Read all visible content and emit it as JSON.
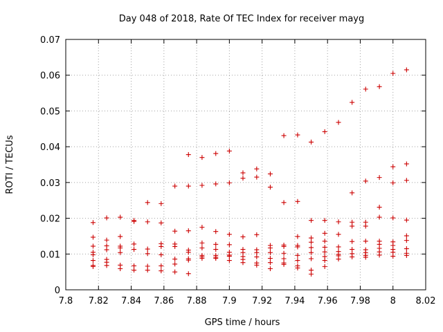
{
  "chart_data": {
    "type": "scatter",
    "title": "Day 048 of 2018, Rate Of TEC Index for receiver mayg",
    "xlabel": "GPS time / hours",
    "ylabel": "ROTI / TECUs",
    "xlim": [
      7.8,
      8.02
    ],
    "ylim": [
      0,
      0.07
    ],
    "xticks": [
      7.8,
      7.82,
      7.84,
      7.86,
      7.88,
      7.9,
      7.92,
      7.94,
      7.96,
      7.98,
      8,
      8.02
    ],
    "xtick_labels": [
      "7.8",
      "7.82",
      "7.84",
      "7.86",
      "7.88",
      "7.9",
      "7.92",
      "7.94",
      "7.96",
      "7.98",
      "8",
      "8.02"
    ],
    "yticks": [
      0,
      0.01,
      0.02,
      0.03,
      0.04,
      0.05,
      0.06,
      0.07
    ],
    "ytick_labels": [
      "0",
      "0.01",
      "0.02",
      "0.03",
      "0.04",
      "0.05",
      "0.06",
      "0.07"
    ],
    "grid": true,
    "marker": "+",
    "color": "#cc0000",
    "series": [
      {
        "name": "ROTI",
        "points": [
          [
            7.8167,
            0.0188
          ],
          [
            7.8167,
            0.0147
          ],
          [
            7.8167,
            0.0122
          ],
          [
            7.8167,
            0.0105
          ],
          [
            7.8167,
            0.0098
          ],
          [
            7.8167,
            0.0082
          ],
          [
            7.8167,
            0.0068
          ],
          [
            7.8167,
            0.0065
          ],
          [
            7.825,
            0.0201
          ],
          [
            7.825,
            0.0139
          ],
          [
            7.825,
            0.0123
          ],
          [
            7.825,
            0.0112
          ],
          [
            7.825,
            0.0085
          ],
          [
            7.825,
            0.0077
          ],
          [
            7.825,
            0.0068
          ],
          [
            7.8333,
            0.0203
          ],
          [
            7.8333,
            0.0149
          ],
          [
            7.8333,
            0.0122
          ],
          [
            7.8333,
            0.0117
          ],
          [
            7.8333,
            0.0104
          ],
          [
            7.8333,
            0.0069
          ],
          [
            7.8333,
            0.0059
          ],
          [
            7.8417,
            0.0194
          ],
          [
            7.8417,
            0.0191
          ],
          [
            7.8417,
            0.0128
          ],
          [
            7.8417,
            0.0113
          ],
          [
            7.8417,
            0.0067
          ],
          [
            7.8417,
            0.0055
          ],
          [
            7.85,
            0.0244
          ],
          [
            7.85,
            0.019
          ],
          [
            7.85,
            0.0114
          ],
          [
            7.85,
            0.0101
          ],
          [
            7.85,
            0.0066
          ],
          [
            7.85,
            0.0055
          ],
          [
            7.8583,
            0.0241
          ],
          [
            7.8583,
            0.0187
          ],
          [
            7.8583,
            0.0129
          ],
          [
            7.8583,
            0.0121
          ],
          [
            7.8583,
            0.0098
          ],
          [
            7.8583,
            0.0067
          ],
          [
            7.8583,
            0.0053
          ],
          [
            7.8667,
            0.029
          ],
          [
            7.8667,
            0.0164
          ],
          [
            7.8667,
            0.0128
          ],
          [
            7.8667,
            0.0121
          ],
          [
            7.8667,
            0.0086
          ],
          [
            7.8667,
            0.0072
          ],
          [
            7.8667,
            0.005
          ],
          [
            7.875,
            0.0378
          ],
          [
            7.875,
            0.029
          ],
          [
            7.875,
            0.0165
          ],
          [
            7.875,
            0.0111
          ],
          [
            7.875,
            0.0105
          ],
          [
            7.875,
            0.0087
          ],
          [
            7.875,
            0.0083
          ],
          [
            7.875,
            0.0045
          ],
          [
            7.8833,
            0.037
          ],
          [
            7.8833,
            0.0292
          ],
          [
            7.8833,
            0.0175
          ],
          [
            7.8833,
            0.0131
          ],
          [
            7.8833,
            0.0117
          ],
          [
            7.8833,
            0.0096
          ],
          [
            7.8833,
            0.0092
          ],
          [
            7.8833,
            0.0088
          ],
          [
            7.8917,
            0.0381
          ],
          [
            7.8917,
            0.0296
          ],
          [
            7.8917,
            0.0163
          ],
          [
            7.8917,
            0.0127
          ],
          [
            7.8917,
            0.0113
          ],
          [
            7.8917,
            0.0096
          ],
          [
            7.8917,
            0.0091
          ],
          [
            7.8917,
            0.0088
          ],
          [
            7.9,
            0.0388
          ],
          [
            7.9,
            0.0299
          ],
          [
            7.9,
            0.0155
          ],
          [
            7.9,
            0.0126
          ],
          [
            7.9,
            0.0105
          ],
          [
            7.9,
            0.0097
          ],
          [
            7.9,
            0.0094
          ],
          [
            7.9,
            0.0082
          ],
          [
            7.9083,
            0.0327
          ],
          [
            7.9083,
            0.0312
          ],
          [
            7.9083,
            0.0148
          ],
          [
            7.9083,
            0.0113
          ],
          [
            7.9083,
            0.0104
          ],
          [
            7.9083,
            0.0093
          ],
          [
            7.9083,
            0.0085
          ],
          [
            7.9083,
            0.0076
          ],
          [
            7.9167,
            0.0338
          ],
          [
            7.9167,
            0.0315
          ],
          [
            7.9167,
            0.0154
          ],
          [
            7.9167,
            0.0112
          ],
          [
            7.9167,
            0.0104
          ],
          [
            7.9167,
            0.0092
          ],
          [
            7.9167,
            0.0075
          ],
          [
            7.9167,
            0.0069
          ],
          [
            7.925,
            0.0324
          ],
          [
            7.925,
            0.0287
          ],
          [
            7.925,
            0.0124
          ],
          [
            7.925,
            0.0117
          ],
          [
            7.925,
            0.0104
          ],
          [
            7.925,
            0.0088
          ],
          [
            7.925,
            0.0076
          ],
          [
            7.925,
            0.0059
          ],
          [
            7.9333,
            0.0431
          ],
          [
            7.9333,
            0.0244
          ],
          [
            7.9333,
            0.0125
          ],
          [
            7.9333,
            0.0121
          ],
          [
            7.9333,
            0.0102
          ],
          [
            7.9333,
            0.0087
          ],
          [
            7.9333,
            0.0075
          ],
          [
            7.9333,
            0.0071
          ],
          [
            7.9417,
            0.0433
          ],
          [
            7.9417,
            0.0247
          ],
          [
            7.9417,
            0.0149
          ],
          [
            7.9417,
            0.0124
          ],
          [
            7.9417,
            0.012
          ],
          [
            7.9417,
            0.0096
          ],
          [
            7.9417,
            0.0082
          ],
          [
            7.9417,
            0.0067
          ],
          [
            7.9417,
            0.0061
          ],
          [
            7.95,
            0.0413
          ],
          [
            7.95,
            0.0194
          ],
          [
            7.95,
            0.0145
          ],
          [
            7.95,
            0.0133
          ],
          [
            7.95,
            0.0118
          ],
          [
            7.95,
            0.0104
          ],
          [
            7.95,
            0.0087
          ],
          [
            7.95,
            0.0055
          ],
          [
            7.95,
            0.0044
          ],
          [
            7.9583,
            0.0442
          ],
          [
            7.9583,
            0.0194
          ],
          [
            7.9583,
            0.0158
          ],
          [
            7.9583,
            0.0136
          ],
          [
            7.9583,
            0.0119
          ],
          [
            7.9583,
            0.0106
          ],
          [
            7.9583,
            0.0093
          ],
          [
            7.9583,
            0.0082
          ],
          [
            7.9583,
            0.0065
          ],
          [
            7.9667,
            0.0468
          ],
          [
            7.9667,
            0.019
          ],
          [
            7.9667,
            0.0155
          ],
          [
            7.9667,
            0.012
          ],
          [
            7.9667,
            0.0107
          ],
          [
            7.9667,
            0.0099
          ],
          [
            7.9667,
            0.0095
          ],
          [
            7.9667,
            0.0086
          ],
          [
            7.975,
            0.0524
          ],
          [
            7.975,
            0.0271
          ],
          [
            7.975,
            0.0189
          ],
          [
            7.975,
            0.0178
          ],
          [
            7.975,
            0.0135
          ],
          [
            7.975,
            0.0113
          ],
          [
            7.975,
            0.0101
          ],
          [
            7.975,
            0.0092
          ],
          [
            7.9833,
            0.0561
          ],
          [
            7.9833,
            0.0304
          ],
          [
            7.9833,
            0.0189
          ],
          [
            7.9833,
            0.0178
          ],
          [
            7.9833,
            0.0136
          ],
          [
            7.9833,
            0.0112
          ],
          [
            7.9833,
            0.0104
          ],
          [
            7.9833,
            0.0096
          ],
          [
            7.9833,
            0.0091
          ],
          [
            7.9917,
            0.0568
          ],
          [
            7.9917,
            0.0314
          ],
          [
            7.9917,
            0.0231
          ],
          [
            7.9917,
            0.0203
          ],
          [
            7.9917,
            0.0136
          ],
          [
            7.9917,
            0.0127
          ],
          [
            7.9917,
            0.0116
          ],
          [
            7.9917,
            0.0106
          ],
          [
            7.9917,
            0.0097
          ],
          [
            8.0,
            0.0605
          ],
          [
            8.0,
            0.0344
          ],
          [
            8.0,
            0.0299
          ],
          [
            8.0,
            0.0201
          ],
          [
            8.0,
            0.0134
          ],
          [
            8.0,
            0.0124
          ],
          [
            8.0,
            0.0113
          ],
          [
            8.0,
            0.0105
          ],
          [
            8.0,
            0.0094
          ],
          [
            8.0083,
            0.0615
          ],
          [
            8.0083,
            0.0352
          ],
          [
            8.0083,
            0.0306
          ],
          [
            8.0083,
            0.0195
          ],
          [
            8.0083,
            0.0151
          ],
          [
            8.0083,
            0.0138
          ],
          [
            8.0083,
            0.0115
          ],
          [
            8.0083,
            0.0102
          ],
          [
            8.0083,
            0.0096
          ]
        ]
      }
    ]
  }
}
